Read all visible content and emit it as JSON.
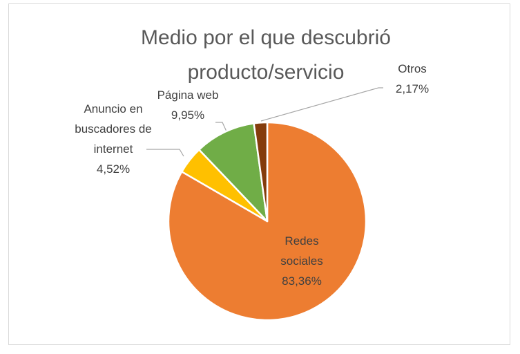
{
  "chart_data": {
    "type": "pie",
    "title": "Medio por el que descubrió producto/servicio",
    "categories": [
      "Redes sociales",
      "Anuncio en buscadores de internet",
      "Página web",
      "Otros"
    ],
    "values": [
      83.36,
      4.52,
      9.95,
      2.17
    ],
    "value_labels": [
      "83,36%",
      "4,52%",
      "9,95%",
      "2,17%"
    ],
    "colors": [
      "#ED7D31",
      "#FFC000",
      "#70AD47",
      "#843C0C"
    ]
  }
}
